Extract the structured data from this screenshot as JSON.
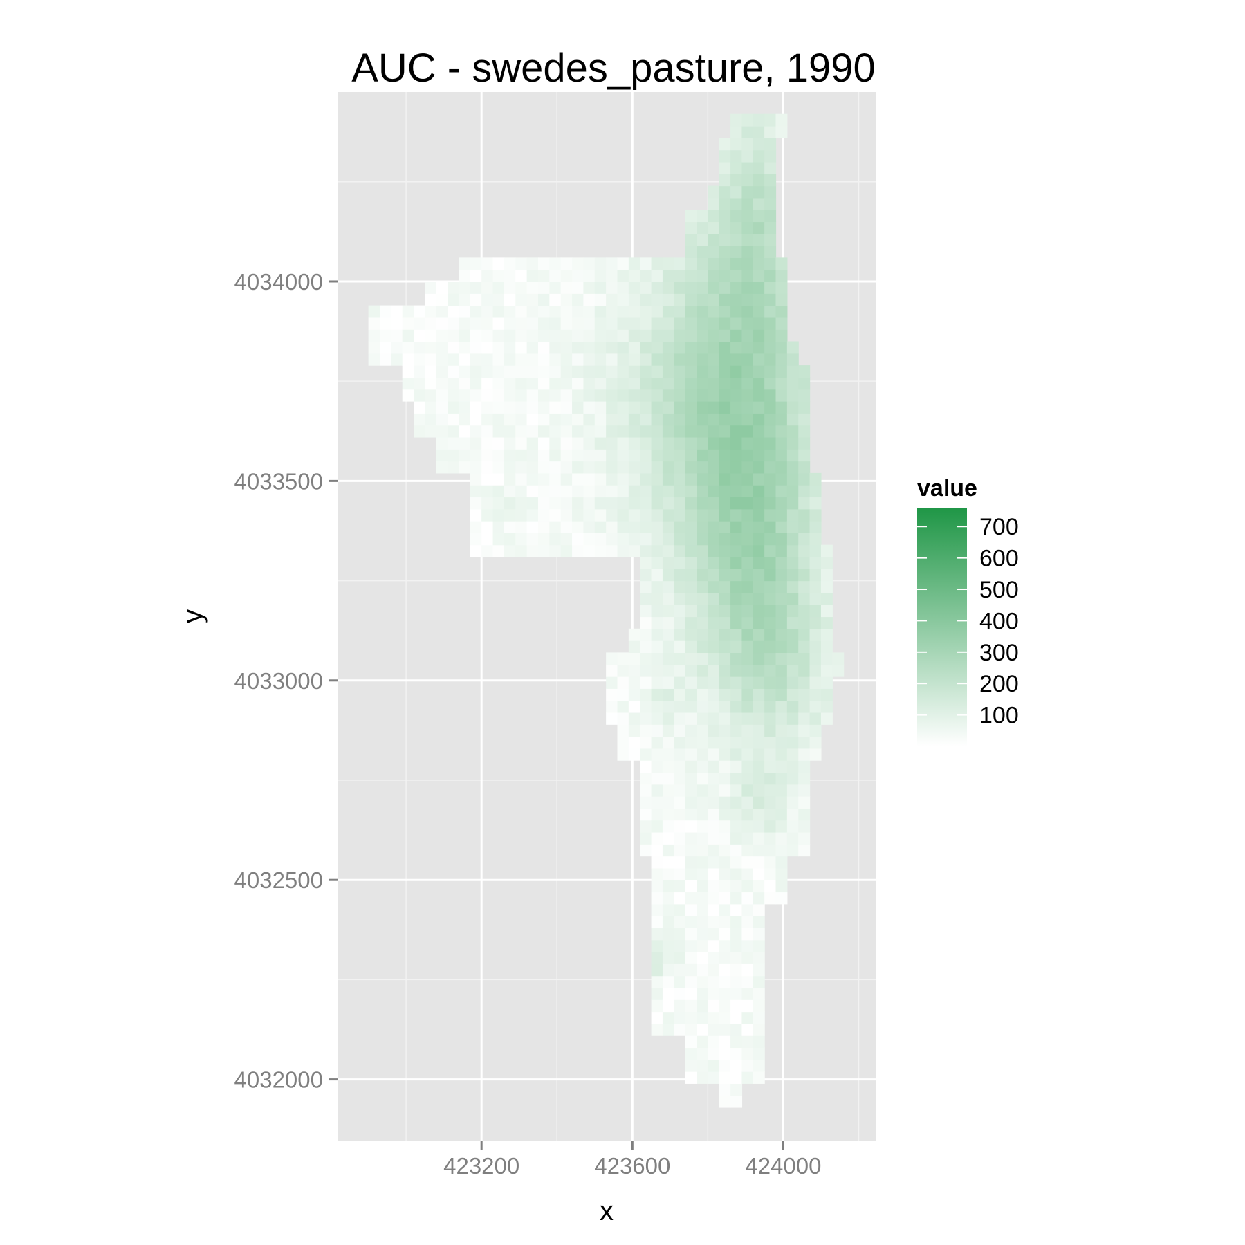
{
  "chart_data": {
    "type": "heatmap",
    "title": "AUC - swedes_pasture, 1990",
    "xlabel": "x",
    "ylabel": "y",
    "xlim": [
      422820,
      424245
    ],
    "ylim": [
      4031845,
      4034475
    ],
    "x_ticks": [
      423200,
      423600,
      424000
    ],
    "x_tick_labels": [
      "423200",
      "423600",
      "424000"
    ],
    "x_minor_ticks": [
      423000,
      423400,
      423800,
      424200
    ],
    "y_ticks": [
      4032000,
      4032500,
      4033000,
      4033500,
      4034000
    ],
    "y_tick_labels": [
      "4032000",
      "4032500",
      "4033000",
      "4033500",
      "4034000"
    ],
    "y_minor_ticks": [
      4032250,
      4032750,
      4033250,
      4033750,
      4034250
    ],
    "grid": true,
    "cell_size": 30,
    "cells_note": "estimated raster cells: [x_center, y_center, value]",
    "cells": [],
    "legend": {
      "title": "value",
      "position": "right",
      "ticks": [
        100,
        200,
        300,
        400,
        500,
        600,
        700
      ],
      "tick_labels": [
        "100",
        "200",
        "300",
        "400",
        "500",
        "600",
        "700"
      ],
      "range": [
        0,
        760
      ],
      "color_low": "#ffffff",
      "color_high": "#1f9646"
    },
    "colors": {
      "panel_background": "#e5e5e5",
      "grid_major": "#ffffff",
      "grid_minor": "#f2f2f2"
    }
  }
}
